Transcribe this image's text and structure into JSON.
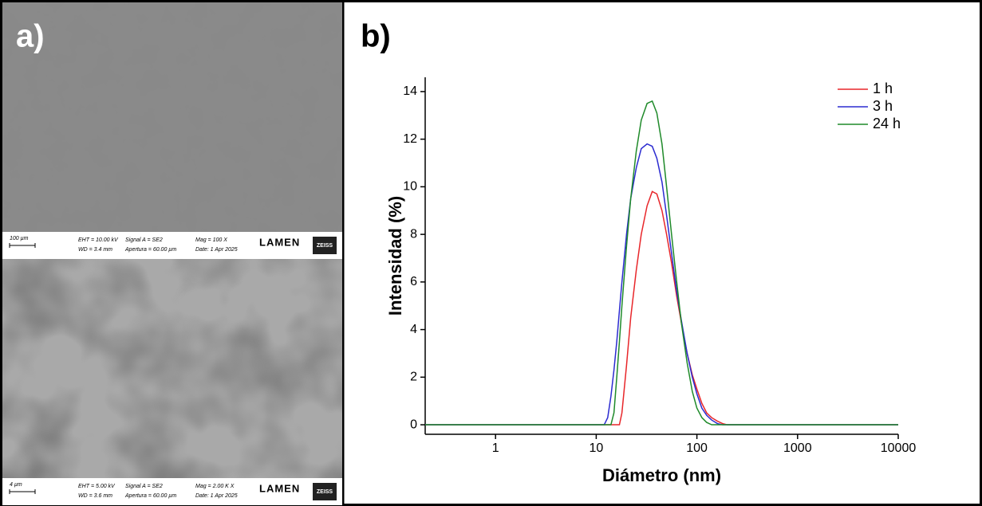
{
  "panel_labels": [
    "a)",
    "b)"
  ],
  "sem_images": [
    {
      "scale": "100 µm",
      "eht": "EHT = 10.00 kV",
      "wd": "WD = 3.4 mm",
      "signal": "Signal A = SE2",
      "apertura": "Apertura = 60.00 µm",
      "mag": "Mag =  100 X",
      "date": "Date: 1 Apr 2025",
      "logo": "LAMEN",
      "brand": "ZEISS"
    },
    {
      "scale": "4 µm",
      "eht": "EHT = 5.00 kV",
      "wd": "WD = 3.6 mm",
      "signal": "Signal A = SE2",
      "apertura": "Apertura = 60.00 µm",
      "mag": "Mag =  2.00 K X",
      "date": "Date: 1 Apr 2025",
      "logo": "LAMEN",
      "brand": "ZEISS"
    }
  ],
  "chart_data": {
    "type": "line",
    "xlabel": "Diámetro (nm)",
    "ylabel": "Intensidad (%)",
    "x_scale": "log",
    "legend": "upper right",
    "x": [
      0.2,
      10,
      12,
      13,
      14,
      15,
      16,
      17,
      18,
      20,
      22,
      25,
      28,
      32,
      36,
      40,
      45,
      50,
      56,
      63,
      70,
      80,
      90,
      100,
      112,
      125,
      140,
      160,
      180,
      200,
      250,
      10000
    ],
    "series": [
      {
        "name": "1 h",
        "color": "#e8262a",
        "values": [
          0,
          0,
          0,
          0,
          0,
          0,
          0,
          0,
          0.5,
          2.5,
          4.5,
          6.5,
          8,
          9.2,
          9.8,
          9.7,
          9.0,
          8.0,
          6.8,
          5.4,
          4.3,
          3.0,
          2.1,
          1.5,
          0.9,
          0.5,
          0.3,
          0.15,
          0.05,
          0,
          0,
          0
        ]
      },
      {
        "name": "3 h",
        "color": "#2b2bd0",
        "values": [
          0,
          0,
          0,
          0.3,
          1.2,
          2.3,
          3.5,
          4.8,
          6,
          8,
          9.5,
          10.8,
          11.6,
          11.8,
          11.7,
          11.2,
          10.2,
          8.8,
          7.2,
          5.6,
          4.4,
          3.0,
          2.0,
          1.3,
          0.7,
          0.4,
          0.2,
          0.05,
          0,
          0,
          0,
          0
        ]
      },
      {
        "name": "24 h",
        "color": "#1f8a2a",
        "values": [
          0,
          0,
          0,
          0,
          0,
          0.5,
          2,
          3.5,
          5,
          7.5,
          9.5,
          11.5,
          12.8,
          13.5,
          13.6,
          13.1,
          11.8,
          10.0,
          8.0,
          6.0,
          4.3,
          2.6,
          1.4,
          0.7,
          0.3,
          0.1,
          0,
          0,
          0,
          0,
          0,
          0
        ]
      }
    ],
    "xlim": [
      0.2,
      10000
    ],
    "xticks": [
      1,
      10,
      100,
      1000,
      10000
    ],
    "ylim": [
      -0.4,
      14.6
    ],
    "yticks": [
      0,
      2,
      4,
      6,
      8,
      10,
      12,
      14
    ]
  }
}
